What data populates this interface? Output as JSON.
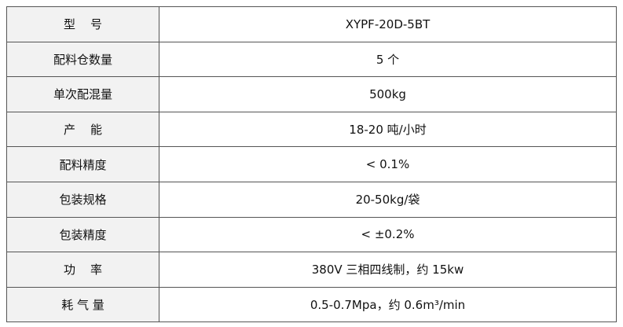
{
  "table": {
    "rows": [
      [
        "型    号",
        "XYPF-20D-5BT"
      ],
      [
        "配料仓数量",
        "5 个"
      ],
      [
        "单次配混量",
        "500kg"
      ],
      [
        "产    能",
        "18-20 吨/小时"
      ],
      [
        "配料精度",
        "< 0.1%"
      ],
      [
        "包装规格",
        "20-50kg/袋"
      ],
      [
        "包装精度",
        "< ±0.2%"
      ],
      [
        "功    率",
        "380V 三相四线制，约 15kw"
      ],
      [
        "耗 气 量",
        "0.5-0.7Mpa，约 0.6m³/min"
      ]
    ]
  }
}
